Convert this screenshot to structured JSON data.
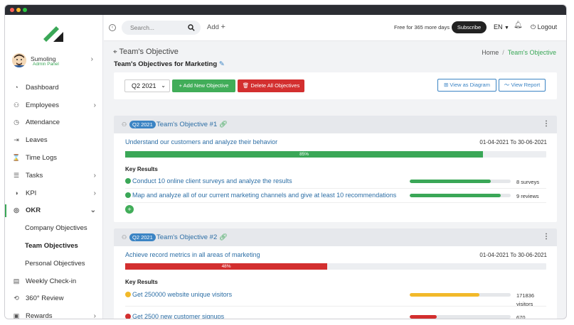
{
  "window": {
    "dot_colors": [
      "#ff5f57",
      "#febc2e",
      "#28c840"
    ]
  },
  "user": {
    "name": "Sumoling",
    "role": "Admin Panel"
  },
  "sidebar": {
    "items": [
      {
        "label": "Dashboard",
        "icon": "gauge-icon"
      },
      {
        "label": "Employees",
        "icon": "user-icon"
      },
      {
        "label": "Attendance",
        "icon": "clock-icon"
      },
      {
        "label": "Leaves",
        "icon": "leave-icon"
      },
      {
        "label": "Time Logs",
        "icon": "hourglass-icon"
      },
      {
        "label": "Tasks",
        "icon": "tasks-icon"
      },
      {
        "label": "KPI",
        "icon": "kpi-icon"
      },
      {
        "label": "OKR",
        "icon": "target-icon"
      },
      {
        "label": "Weekly Check-in",
        "icon": "calendar-icon"
      },
      {
        "label": "360° Review",
        "icon": "review-icon"
      },
      {
        "label": "Rewards",
        "icon": "gift-icon"
      }
    ],
    "okr_sub": [
      "Company Objectives",
      "Team Objectives",
      "Personal Objectives"
    ]
  },
  "topbar": {
    "search_placeholder": "Search...",
    "add_label": "Add",
    "trial_text": "Free for 365 more days",
    "subscribe_label": "Subscribe",
    "language": "EN",
    "logout_label": "Logout"
  },
  "page": {
    "title": "Team's Objective",
    "subtitle": "Team's Objectives for Marketing",
    "breadcrumb": [
      "Home",
      "Team's Objective"
    ]
  },
  "toolbar": {
    "quarter": "Q2 2021",
    "add_objective": "+ Add New Objective",
    "delete_all": "Delete All Objectives",
    "view_diagram": "View as Diagram",
    "view_report": "View Report"
  },
  "objectives": [
    {
      "badge": "Q2 2021",
      "title": "Team's Objective #1",
      "objective": "Understand our customers and analyze their behavior",
      "dates": "01-04-2021 To 30-06-2021",
      "progress": 85,
      "progress_label": "85%",
      "color": "#3aa757",
      "key_results_title": "Key Results",
      "key_results": [
        {
          "text": "Conduct 10 online client surveys and analyze the results",
          "value": "8 surveys",
          "progress": 80,
          "color": "#3aa757"
        },
        {
          "text": "Map and analyze all of our current marketing channels and give at least 10 recommendations",
          "value": "9 reviews",
          "progress": 90,
          "color": "#3aa757"
        }
      ]
    },
    {
      "badge": "Q2 2021",
      "title": "Team's Objective #2",
      "objective": "Achieve record metrics in all areas of marketing",
      "dates": "01-04-2021 To 30-06-2021",
      "progress": 48,
      "progress_label": "48%",
      "color": "#d32f2f",
      "key_results_title": "Key Results",
      "key_results": [
        {
          "text": "Get 250000 website unique visitors",
          "value": "171836 visitors",
          "progress": 69,
          "color": "#f2b92a"
        },
        {
          "text": "Get 2500 new customer signups",
          "value": "670",
          "progress": 27,
          "color": "#d32f2f"
        }
      ]
    }
  ]
}
